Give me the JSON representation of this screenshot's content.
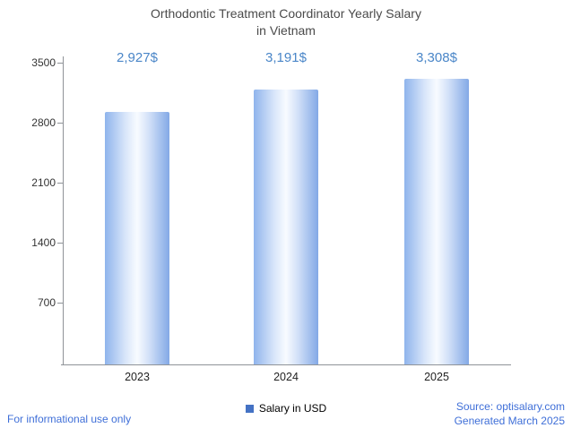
{
  "title": {
    "line1": "Orthodontic Treatment Coordinator Yearly Salary",
    "line2": "in Vietnam"
  },
  "chart_data": {
    "type": "bar",
    "title": "Orthodontic Treatment Coordinator Yearly Salary in Vietnam",
    "categories": [
      "2023",
      "2024",
      "2025"
    ],
    "values": [
      2927,
      3191,
      3308
    ],
    "value_labels": [
      "2,927$",
      "3,191$",
      "3,308$"
    ],
    "xlabel": "",
    "ylabel": "",
    "ylim": [
      0,
      3500
    ],
    "yticks": [
      700,
      1400,
      2100,
      2800,
      3500
    ],
    "ytick_labels": [
      "700",
      "1400",
      "2100",
      "2800",
      "3500"
    ],
    "grid": false,
    "legend": [
      "Salary in USD"
    ],
    "legend_position": "bottom",
    "bar_color_edge": "#8fb4ec",
    "bar_color_center": "#f8fbff"
  },
  "legend": {
    "label": "Salary in USD",
    "marker_color": "#4472c4"
  },
  "footer": {
    "left": "For informational use only",
    "source": "Source: optisalary.com",
    "generated": "Generated March 2025"
  },
  "colors": {
    "value_label": "#4a86c8",
    "footer_text": "#3f6fd8",
    "axis": "#8f9398",
    "title_text": "#4a4a4a"
  }
}
